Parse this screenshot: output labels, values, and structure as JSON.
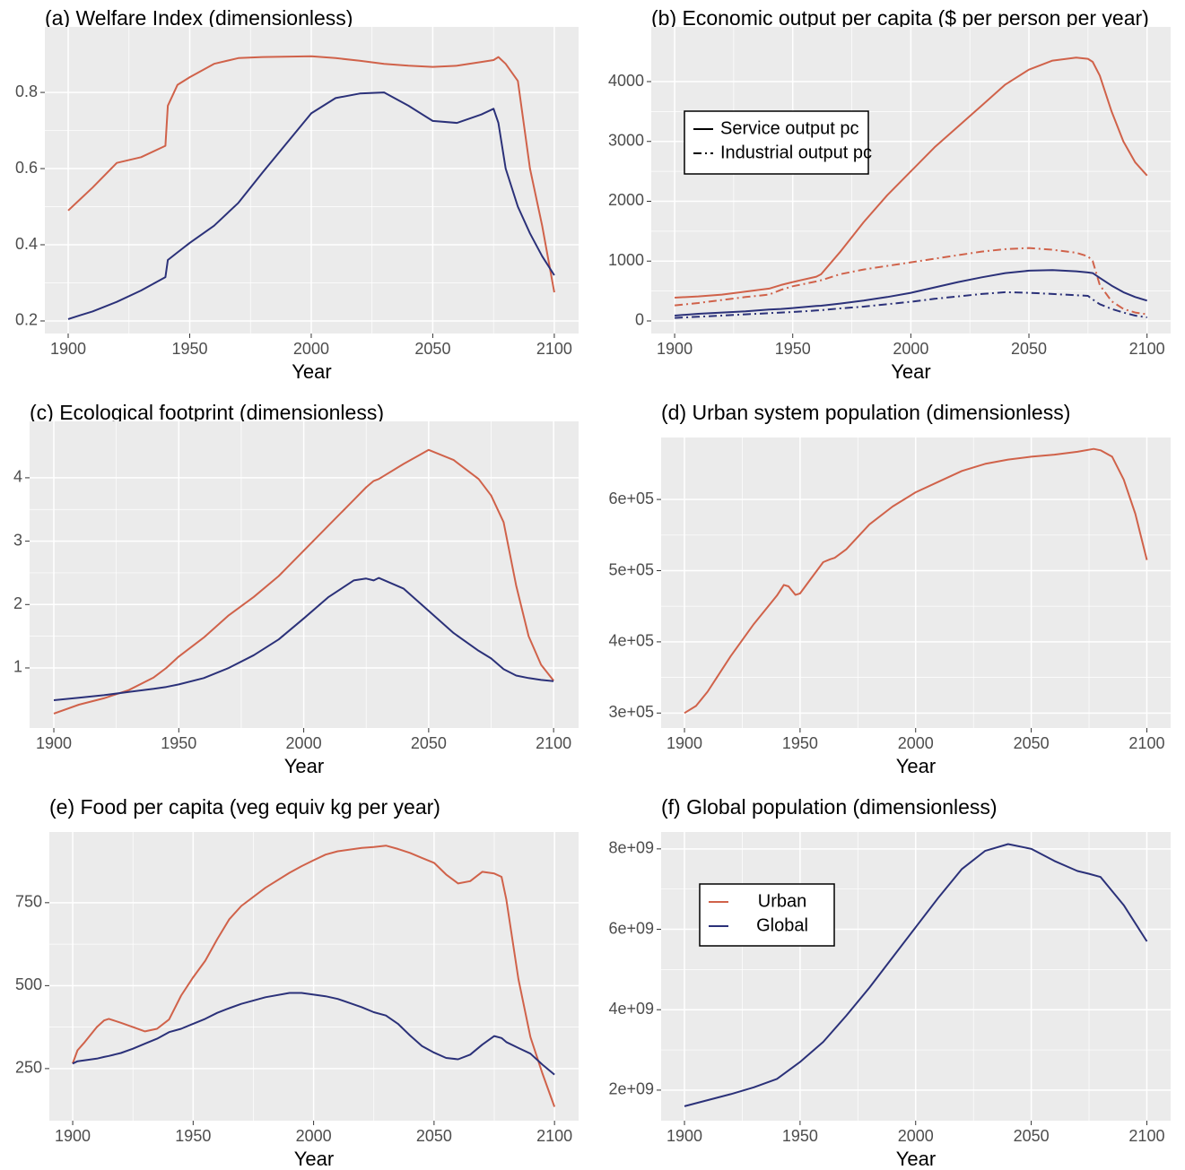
{
  "chart_data": [
    {
      "type": "line",
      "title": "(a) Welfare Index (dimensionless)",
      "xlabel": "Year",
      "x": [
        1900,
        1905,
        1910,
        1920,
        1930,
        1940,
        1941,
        1945,
        1950,
        1960,
        1970,
        1980,
        2000,
        2010,
        2020,
        2030,
        2040,
        2050,
        2060,
        2070,
        2075,
        2077,
        2080,
        2085,
        2090,
        2095,
        2100
      ],
      "series": [
        {
          "color": "#d0624a",
          "dash": "solid",
          "values": [
            0.49,
            0.52,
            0.55,
            0.615,
            0.63,
            0.66,
            0.765,
            0.82,
            0.84,
            0.875,
            0.89,
            0.893,
            0.895,
            0.89,
            0.883,
            0.875,
            0.87,
            0.867,
            0.87,
            0.88,
            0.885,
            0.893,
            0.875,
            0.83,
            0.6,
            0.45,
            0.275
          ]
        },
        {
          "color": "#2b3179",
          "dash": "solid",
          "values": [
            0.205,
            0.215,
            0.225,
            0.25,
            0.28,
            0.315,
            0.36,
            0.38,
            0.405,
            0.45,
            0.51,
            0.59,
            0.745,
            0.785,
            0.797,
            0.8,
            0.765,
            0.725,
            0.72,
            0.742,
            0.757,
            0.72,
            0.6,
            0.5,
            0.43,
            0.37,
            0.32
          ]
        }
      ],
      "xlim": [
        1890.4,
        2110
      ],
      "ylim": [
        0.167,
        0.972
      ],
      "xticks": [
        1900,
        1950,
        2000,
        2050,
        2100
      ],
      "yticks": [
        0.2,
        0.4,
        0.6,
        0.8
      ],
      "grid": true
    },
    {
      "type": "line",
      "title": "(b) Economic output per capita ($ per person per year)",
      "xlabel": "Year",
      "x": [
        1900,
        1910,
        1920,
        1930,
        1940,
        1945,
        1950,
        1960,
        1962,
        1970,
        1980,
        1990,
        2000,
        2010,
        2020,
        2030,
        2040,
        2050,
        2060,
        2070,
        2075,
        2077,
        2080,
        2085,
        2090,
        2095,
        2100
      ],
      "series": [
        {
          "color": "#d0624a",
          "dash": "solid",
          "values": [
            390,
            410,
            440,
            490,
            540,
            600,
            650,
            740,
            780,
            1150,
            1650,
            2100,
            2500,
            2900,
            3250,
            3600,
            3950,
            4200,
            4350,
            4400,
            4380,
            4330,
            4100,
            3500,
            3000,
            2650,
            2430
          ]
        },
        {
          "color": "#d0624a",
          "dash": "dashdot",
          "values": [
            260,
            300,
            350,
            400,
            440,
            520,
            580,
            660,
            680,
            780,
            860,
            920,
            980,
            1040,
            1100,
            1160,
            1200,
            1220,
            1190,
            1140,
            1080,
            1000,
            600,
            330,
            200,
            140,
            110
          ]
        },
        {
          "color": "#2b3179",
          "dash": "solid",
          "values": [
            90,
            120,
            140,
            160,
            190,
            200,
            215,
            250,
            255,
            290,
            340,
            400,
            470,
            560,
            650,
            730,
            800,
            840,
            850,
            830,
            810,
            800,
            720,
            590,
            480,
            400,
            340
          ]
        },
        {
          "color": "#2b3179",
          "dash": "dashdot",
          "values": [
            50,
            70,
            90,
            110,
            130,
            140,
            150,
            175,
            180,
            210,
            240,
            280,
            320,
            370,
            410,
            450,
            480,
            470,
            450,
            430,
            420,
            360,
            280,
            200,
            140,
            90,
            60
          ]
        }
      ],
      "legend": [
        {
          "label": "Service output pc",
          "dash": "solid"
        },
        {
          "label": "Industrial output pc",
          "dash": "dashdot"
        }
      ],
      "xlim": [
        1890.1,
        2110
      ],
      "ylim": [
        -210,
        4914
      ],
      "xticks": [
        1900,
        1950,
        2000,
        2050,
        2100
      ],
      "yticks": [
        0,
        1000,
        2000,
        3000,
        4000
      ],
      "grid": true
    },
    {
      "type": "line",
      "title": "(c) Ecological footprint (dimensionless)",
      "xlabel": "Year",
      "x": [
        1900,
        1910,
        1920,
        1930,
        1940,
        1945,
        1950,
        1960,
        1970,
        1980,
        1990,
        2000,
        2010,
        2020,
        2025,
        2028,
        2030,
        2040,
        2050,
        2060,
        2070,
        2075,
        2080,
        2085,
        2090,
        2095,
        2100
      ],
      "series": [
        {
          "color": "#d0624a",
          "dash": "solid",
          "values": [
            0.28,
            0.42,
            0.52,
            0.65,
            0.85,
            1.0,
            1.18,
            1.48,
            1.83,
            2.12,
            2.45,
            2.85,
            3.25,
            3.65,
            3.85,
            3.95,
            3.98,
            4.22,
            4.44,
            4.28,
            3.98,
            3.72,
            3.3,
            2.3,
            1.5,
            1.05,
            0.8
          ]
        },
        {
          "color": "#2b3179",
          "dash": "solid",
          "values": [
            0.49,
            0.53,
            0.57,
            0.62,
            0.67,
            0.7,
            0.74,
            0.84,
            1.0,
            1.2,
            1.45,
            1.78,
            2.12,
            2.38,
            2.41,
            2.38,
            2.42,
            2.25,
            1.9,
            1.55,
            1.27,
            1.15,
            0.98,
            0.88,
            0.84,
            0.81,
            0.79
          ]
        }
      ],
      "xlim": [
        1890.3,
        2110
      ],
      "ylim": [
        0.052,
        4.89
      ],
      "xticks": [
        1900,
        1950,
        2000,
        2050,
        2100
      ],
      "yticks": [
        1,
        2,
        3,
        4
      ],
      "grid": true
    },
    {
      "type": "line",
      "title": "(d) Urban system population (dimensionless)",
      "xlabel": "Year",
      "x": [
        1900,
        1905,
        1910,
        1920,
        1930,
        1940,
        1943,
        1945,
        1948,
        1950,
        1955,
        1960,
        1963,
        1965,
        1970,
        1980,
        1990,
        2000,
        2010,
        2020,
        2030,
        2040,
        2050,
        2060,
        2070,
        2077,
        2080,
        2085,
        2090,
        2095,
        2100
      ],
      "series": [
        {
          "color": "#d0624a",
          "dash": "solid",
          "values": [
            300000,
            310000,
            330000,
            380000,
            425000,
            465000,
            480000,
            478000,
            466000,
            468000,
            490000,
            512000,
            516000,
            518000,
            530000,
            565000,
            590000,
            610000,
            625000,
            640000,
            650000,
            656000,
            660000,
            663000,
            667000,
            671000,
            669000,
            660000,
            628000,
            580000,
            515000
          ]
        }
      ],
      "xlim": [
        1889.9,
        2110.3
      ],
      "ylim": [
        279000,
        687000
      ],
      "xticks": [
        1900,
        1950,
        2000,
        2050,
        2100
      ],
      "yticks": [
        {
          "value": 300000,
          "label": "3e+05"
        },
        {
          "value": 400000,
          "label": "4e+05"
        },
        {
          "value": 500000,
          "label": "5e+05"
        },
        {
          "value": 600000,
          "label": "6e+05"
        }
      ],
      "grid": true
    },
    {
      "type": "line",
      "title": "(e) Food per capita (veg equiv kg per year)",
      "xlabel": "Year",
      "x": [
        1900,
        1902,
        1905,
        1910,
        1913,
        1915,
        1920,
        1925,
        1930,
        1935,
        1940,
        1945,
        1950,
        1955,
        1960,
        1965,
        1970,
        1980,
        1990,
        1995,
        2000,
        2005,
        2010,
        2020,
        2025,
        2030,
        2035,
        2040,
        2045,
        2050,
        2055,
        2060,
        2065,
        2070,
        2075,
        2078,
        2080,
        2085,
        2090,
        2095,
        2100
      ],
      "series": [
        {
          "color": "#d0624a",
          "dash": "solid",
          "values": [
            265,
            305,
            330,
            375,
            395,
            400,
            388,
            375,
            362,
            370,
            398,
            470,
            525,
            575,
            640,
            700,
            740,
            795,
            840,
            860,
            878,
            895,
            905,
            915,
            918,
            922,
            912,
            900,
            885,
            870,
            835,
            808,
            815,
            843,
            838,
            828,
            760,
            520,
            345,
            235,
            135
          ]
        },
        {
          "color": "#2b3179",
          "dash": "solid",
          "values": [
            265,
            272,
            275,
            280,
            285,
            288,
            297,
            310,
            325,
            340,
            360,
            370,
            385,
            400,
            418,
            432,
            445,
            465,
            478,
            478,
            473,
            468,
            460,
            435,
            420,
            410,
            385,
            350,
            318,
            298,
            282,
            278,
            292,
            322,
            348,
            342,
            330,
            312,
            295,
            262,
            232
          ]
        }
      ],
      "xlim": [
        1890.3,
        2110
      ],
      "ylim": [
        93,
        963
      ],
      "xticks": [
        1900,
        1950,
        2000,
        2050,
        2100
      ],
      "yticks": [
        250,
        500,
        750
      ],
      "grid": true
    },
    {
      "type": "line",
      "title": "(f) Global population (dimensionless)",
      "xlabel": "Year",
      "x": [
        1900,
        1910,
        1920,
        1930,
        1940,
        1950,
        1960,
        1970,
        1980,
        1990,
        2000,
        2010,
        2020,
        2030,
        2040,
        2050,
        2060,
        2070,
        2075,
        2080,
        2090,
        2100
      ],
      "series": [
        {
          "color": "#2b3179",
          "dash": "solid",
          "values": [
            1600000000,
            1750000000,
            1900000000,
            2070000000,
            2280000000,
            2700000000,
            3200000000,
            3850000000,
            4550000000,
            5300000000,
            6050000000,
            6800000000,
            7500000000,
            7950000000,
            8120000000,
            8000000000,
            7700000000,
            7450000000,
            7380000000,
            7300000000,
            6600000000,
            5700000000
          ]
        }
      ],
      "legend": [
        {
          "label": "Urban",
          "color": "#d0624a"
        },
        {
          "label": "Global",
          "color": "#2b3179"
        }
      ],
      "xlim": [
        1889.9,
        2110.3
      ],
      "ylim": [
        1240000000,
        8420000000
      ],
      "xticks": [
        1900,
        1950,
        2000,
        2050,
        2100
      ],
      "yticks": [
        {
          "value": 2000000000,
          "label": "2e+09"
        },
        {
          "value": 4000000000,
          "label": "4e+09"
        },
        {
          "value": 6000000000,
          "label": "6e+09"
        },
        {
          "value": 8000000000,
          "label": "8e+09"
        }
      ],
      "grid": true
    }
  ]
}
